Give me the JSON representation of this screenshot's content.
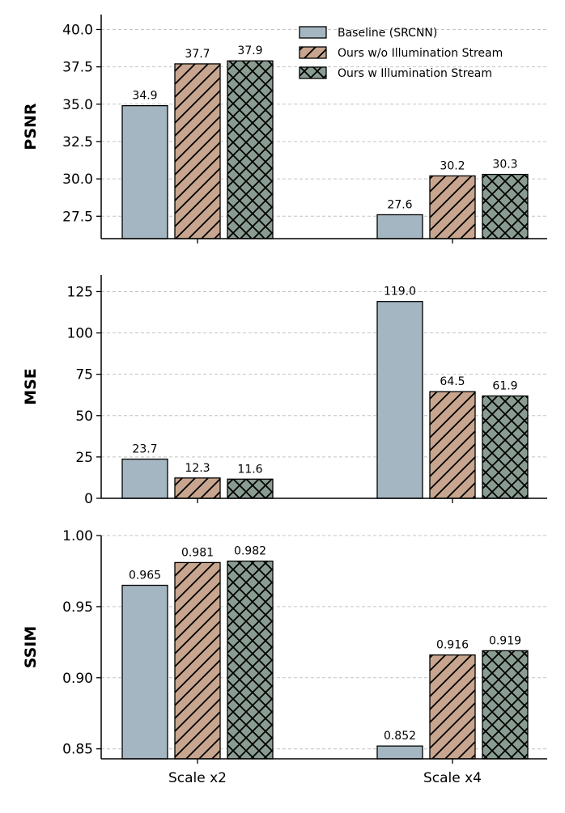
{
  "chart_data": {
    "type": "bar",
    "categories": [
      "Scale x2",
      "Scale x4"
    ],
    "legend": {
      "placement": "top-right",
      "entries": [
        "Baseline (SRCNN)",
        "Ours w/o Illumination Stream",
        "Ours w Illumination Stream"
      ]
    },
    "series_colors": [
      "#a4b6c1",
      "#c7a58e",
      "#899c91"
    ],
    "series_patterns": [
      "none",
      "diagonal",
      "crosshatch"
    ],
    "grid": "y-dashed",
    "panels": [
      {
        "ylabel": "PSNR",
        "ylim": [
          26.0,
          41.0
        ],
        "yticks": [
          "27.5",
          "30.0",
          "32.5",
          "35.0",
          "37.5",
          "40.0"
        ],
        "series": [
          {
            "name": "Baseline (SRCNN)",
            "values": [
              34.9,
              27.6
            ],
            "labels": [
              "34.9",
              "27.6"
            ]
          },
          {
            "name": "Ours w/o Illumination Stream",
            "values": [
              37.7,
              30.2
            ],
            "labels": [
              "37.7",
              "30.2"
            ]
          },
          {
            "name": "Ours w Illumination Stream",
            "values": [
              37.9,
              30.3
            ],
            "labels": [
              "37.9",
              "30.3"
            ]
          }
        ]
      },
      {
        "ylabel": "MSE",
        "ylim": [
          0,
          135
        ],
        "yticks": [
          "0",
          "25",
          "50",
          "75",
          "100",
          "125"
        ],
        "series": [
          {
            "name": "Baseline (SRCNN)",
            "values": [
              23.7,
              119.0
            ],
            "labels": [
              "23.7",
              "119.0"
            ]
          },
          {
            "name": "Ours w/o Illumination Stream",
            "values": [
              12.3,
              64.5
            ],
            "labels": [
              "12.3",
              "64.5"
            ]
          },
          {
            "name": "Ours w Illumination Stream",
            "values": [
              11.6,
              61.9
            ],
            "labels": [
              "11.6",
              "61.9"
            ]
          }
        ]
      },
      {
        "ylabel": "SSIM",
        "ylim": [
          0.843,
          1.0
        ],
        "yticks": [
          "0.85",
          "0.90",
          "0.95",
          "1.00"
        ],
        "series": [
          {
            "name": "Baseline (SRCNN)",
            "values": [
              0.965,
              0.852
            ],
            "labels": [
              "0.965",
              "0.852"
            ]
          },
          {
            "name": "Ours w/o Illumination Stream",
            "values": [
              0.981,
              0.916
            ],
            "labels": [
              "0.981",
              "0.916"
            ]
          },
          {
            "name": "Ours w Illumination Stream",
            "values": [
              0.982,
              0.919
            ],
            "labels": [
              "0.982",
              "0.919"
            ]
          }
        ]
      }
    ]
  }
}
